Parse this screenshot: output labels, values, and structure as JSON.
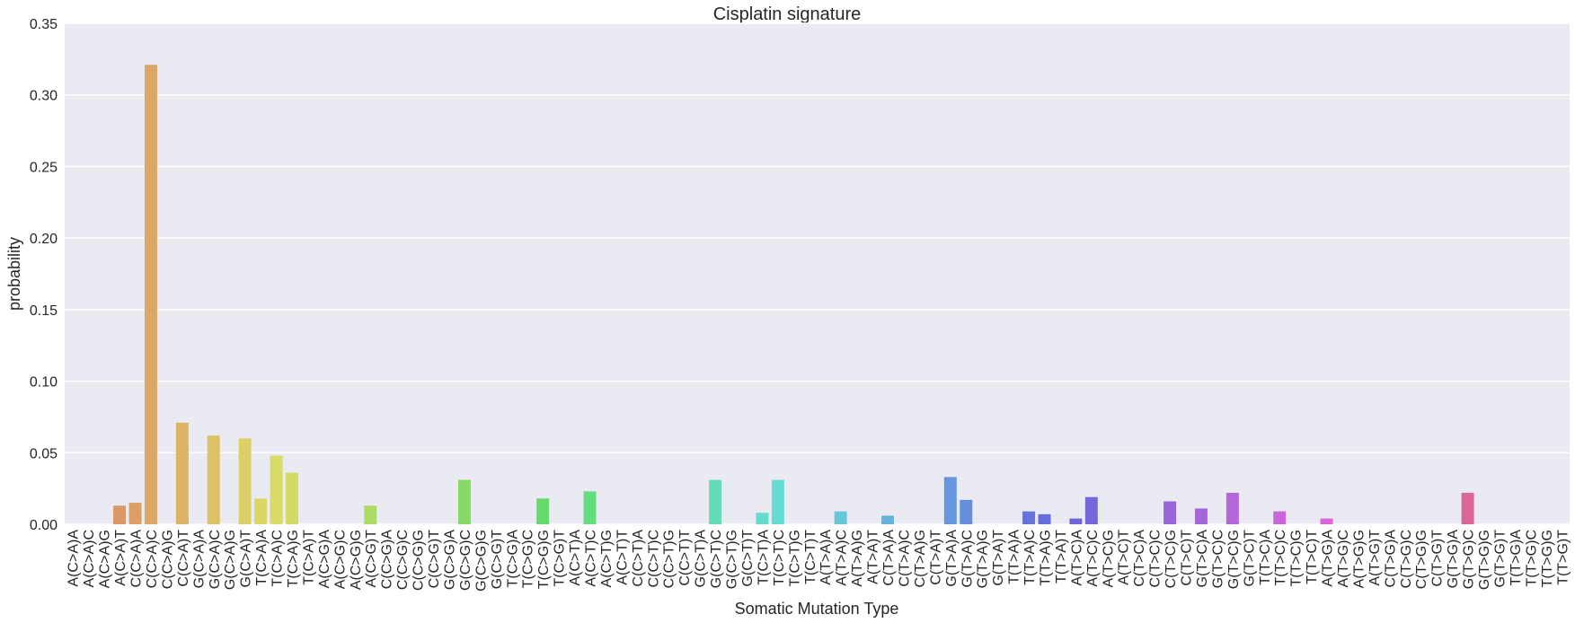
{
  "chart_data": {
    "type": "bar",
    "title": "Cisplatin signature",
    "xlabel": "Somatic Mutation Type",
    "ylabel": "probability",
    "ylim": [
      0,
      0.35
    ],
    "yticks": [
      "0.00",
      "0.05",
      "0.10",
      "0.15",
      "0.20",
      "0.25",
      "0.30",
      "0.35"
    ],
    "grid": true,
    "background": "#eaeaf2",
    "categories": [
      "A(C>A)A",
      "A(C>A)C",
      "A(C>A)G",
      "A(C>A)T",
      "C(C>A)A",
      "C(C>A)C",
      "C(C>A)G",
      "C(C>A)T",
      "G(C>A)A",
      "G(C>A)C",
      "G(C>A)G",
      "G(C>A)T",
      "T(C>A)A",
      "T(C>A)C",
      "T(C>A)G",
      "T(C>A)T",
      "A(C>G)A",
      "A(C>G)C",
      "A(C>G)G",
      "A(C>G)T",
      "C(C>G)A",
      "C(C>G)C",
      "C(C>G)G",
      "C(C>G)T",
      "G(C>G)A",
      "G(C>G)C",
      "G(C>G)G",
      "G(C>G)T",
      "T(C>G)A",
      "T(C>G)C",
      "T(C>G)G",
      "T(C>G)T",
      "A(C>T)A",
      "A(C>T)C",
      "A(C>T)G",
      "A(C>T)T",
      "C(C>T)A",
      "C(C>T)C",
      "C(C>T)G",
      "C(C>T)T",
      "G(C>T)A",
      "G(C>T)C",
      "G(C>T)G",
      "G(C>T)T",
      "T(C>T)A",
      "T(C>T)C",
      "T(C>T)G",
      "T(C>T)T",
      "A(T>A)A",
      "A(T>A)C",
      "A(T>A)G",
      "A(T>A)T",
      "C(T>A)A",
      "C(T>A)C",
      "C(T>A)G",
      "C(T>A)T",
      "G(T>A)A",
      "G(T>A)C",
      "G(T>A)G",
      "G(T>A)T",
      "T(T>A)A",
      "T(T>A)C",
      "T(T>A)G",
      "T(T>A)T",
      "A(T>C)A",
      "A(T>C)C",
      "A(T>C)G",
      "A(T>C)T",
      "C(T>C)A",
      "C(T>C)C",
      "C(T>C)G",
      "C(T>C)T",
      "G(T>C)A",
      "G(T>C)C",
      "G(T>C)G",
      "G(T>C)T",
      "T(T>C)A",
      "T(T>C)C",
      "T(T>C)G",
      "T(T>C)T",
      "A(T>G)A",
      "A(T>G)C",
      "A(T>G)G",
      "A(T>G)T",
      "C(T>G)A",
      "C(T>G)C",
      "C(T>G)G",
      "C(T>G)T",
      "G(T>G)A",
      "G(T>G)C",
      "G(T>G)G",
      "G(T>G)T",
      "T(T>G)A",
      "T(T>G)C",
      "T(T>G)G",
      "T(T>G)T"
    ],
    "values": [
      0,
      0,
      0,
      0.013,
      0.015,
      0.321,
      0,
      0.071,
      0,
      0.062,
      0,
      0.06,
      0.018,
      0.048,
      0.036,
      0,
      0,
      0,
      0,
      0.013,
      0,
      0,
      0,
      0,
      0,
      0.031,
      0,
      0,
      0,
      0,
      0.018,
      0,
      0,
      0.023,
      0,
      0,
      0,
      0,
      0,
      0,
      0,
      0.031,
      0,
      0,
      0.008,
      0.031,
      0,
      0,
      0,
      0.009,
      0,
      0,
      0.006,
      0,
      0,
      0,
      0.033,
      0.017,
      0,
      0,
      0,
      0.009,
      0.007,
      0,
      0.004,
      0.019,
      0,
      0,
      0,
      0,
      0.016,
      0,
      0.011,
      0,
      0.022,
      0,
      0,
      0.009,
      0,
      0,
      0.004,
      0,
      0,
      0,
      0,
      0,
      0,
      0,
      0,
      0.022,
      0,
      0,
      0,
      0,
      0,
      0
    ]
  }
}
